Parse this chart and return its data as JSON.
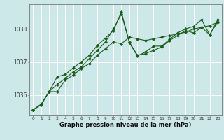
{
  "xlabel": "Graphe pression niveau de la mer (hPa)",
  "bg_color": "#cce8e8",
  "grid_color": "#ffffff",
  "line_color": "#1a5c1a",
  "marker": "D",
  "marker_size": 2.2,
  "linewidth": 0.8,
  "xlim": [
    -0.5,
    23.5
  ],
  "ylim": [
    1035.4,
    1038.75
  ],
  "yticks": [
    1036,
    1037,
    1038
  ],
  "ytick_fontsize": 5.5,
  "xtick_fontsize": 4.5,
  "xlabel_fontsize": 6.0,
  "xticks": [
    0,
    1,
    2,
    3,
    4,
    5,
    6,
    7,
    8,
    9,
    10,
    11,
    12,
    13,
    14,
    15,
    16,
    17,
    18,
    19,
    20,
    21,
    22,
    23
  ],
  "series": [
    [
      1035.55,
      1035.7,
      1036.1,
      1036.1,
      1036.45,
      1036.6,
      1036.8,
      1036.95,
      1037.2,
      1037.4,
      1037.6,
      1037.55,
      1037.75,
      1037.7,
      1037.65,
      1037.7,
      1037.75,
      1037.8,
      1037.85,
      1037.9,
      1038.0,
      1038.05,
      1038.1,
      1038.2
    ],
    [
      1035.55,
      1035.72,
      1036.1,
      1036.32,
      1036.5,
      1036.7,
      1036.85,
      1037.1,
      1037.35,
      1037.6,
      1038.0,
      1038.45,
      1037.6,
      1037.2,
      1037.25,
      1037.35,
      1037.45,
      1037.65,
      1037.8,
      1037.95,
      1037.88,
      1038.05,
      1037.82,
      1038.22
    ],
    [
      1035.55,
      1035.72,
      1036.1,
      1036.55,
      1036.62,
      1036.82,
      1037.0,
      1037.2,
      1037.5,
      1037.72,
      1037.95,
      1038.52,
      1037.58,
      1037.18,
      1037.3,
      1037.48,
      1037.48,
      1037.68,
      1037.88,
      1038.0,
      1038.08,
      1038.28,
      1037.82,
      1038.28
    ]
  ]
}
